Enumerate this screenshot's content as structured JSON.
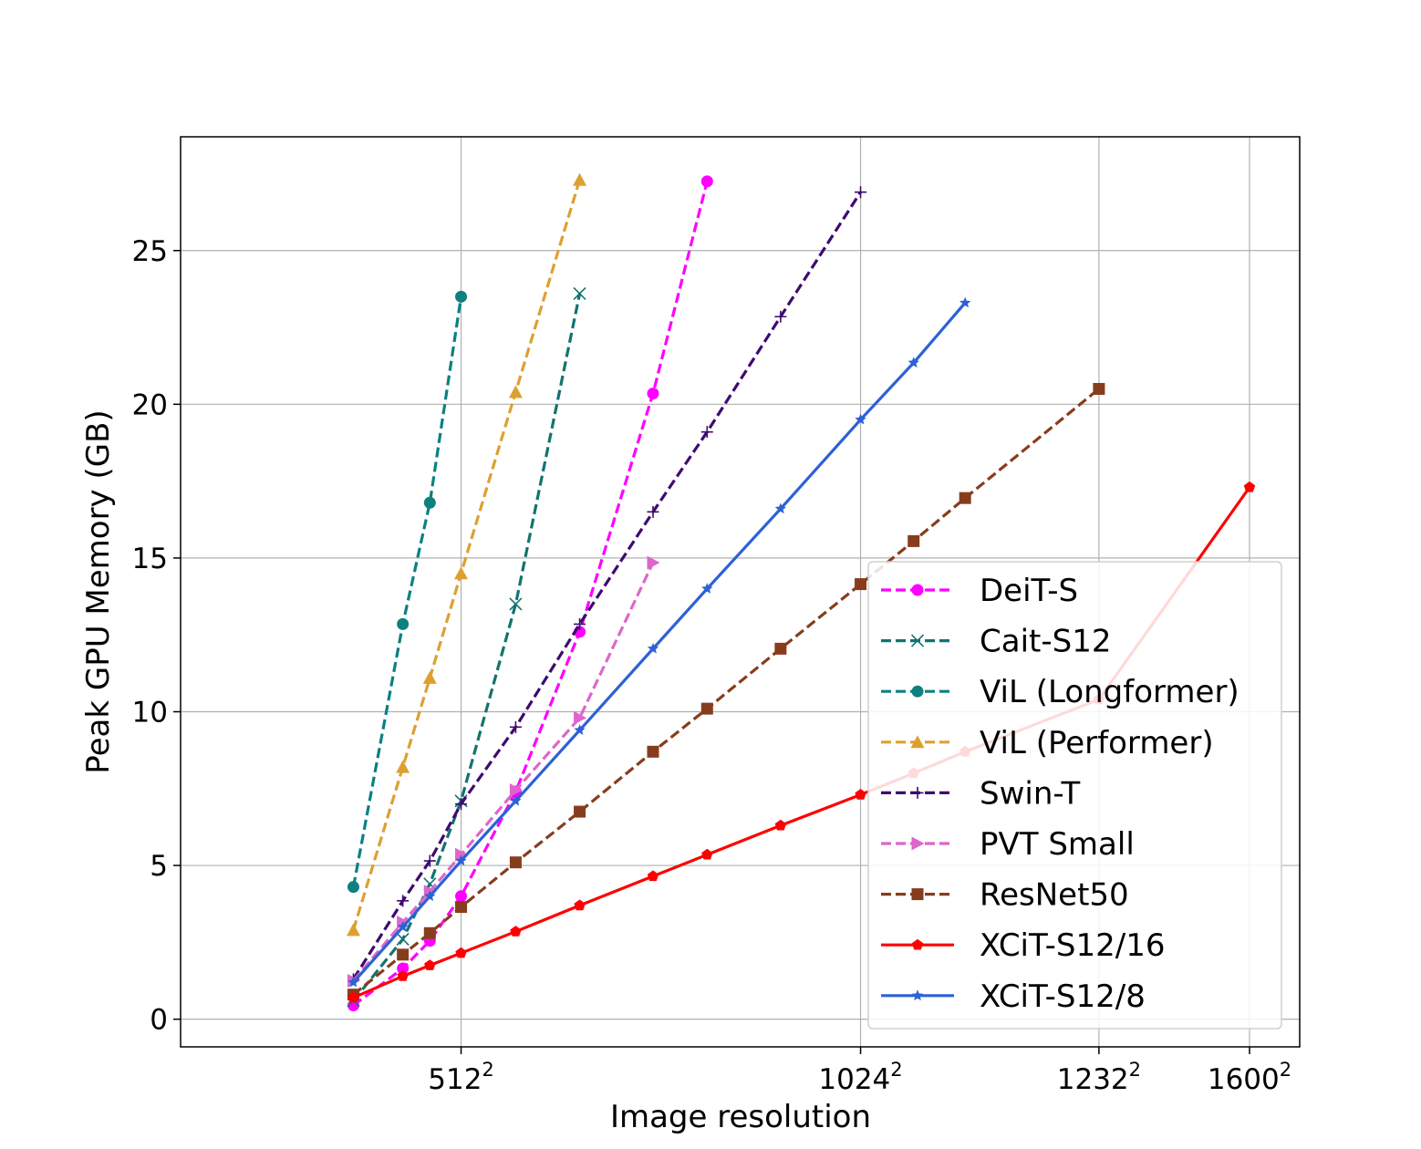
{
  "chart_data": {
    "type": "line",
    "title": "",
    "xlabel": "Image resolution",
    "ylabel": "Peak GPU Memory (GB)",
    "xlim": [
      -290000,
      1913000
    ],
    "ylim": [
      -0.9,
      28.7
    ],
    "x_scale": "resolution squared (pixels)",
    "x_ticks": [
      {
        "value": 262144,
        "base": "512",
        "exp": "2"
      },
      {
        "value": 1048576,
        "base": "1024",
        "exp": "2"
      },
      {
        "value": 1517824,
        "base": "1232",
        "exp": "2"
      },
      {
        "value": 2560000,
        "base": "1600",
        "exp": "2"
      }
    ],
    "y_ticks": [
      0,
      5,
      10,
      15,
      20,
      25
    ],
    "grid": true,
    "legend_position": "lower-right",
    "series": [
      {
        "name": "DeiT-S",
        "color": "#ff00ff",
        "dash": "dashed",
        "marker": "circle",
        "x": [
          50176,
          147456,
          200704,
          262144,
          369664,
          495616,
          640000,
          746496
        ],
        "y": [
          0.45,
          1.65,
          2.55,
          4.0,
          7.4,
          12.6,
          20.35,
          27.25
        ]
      },
      {
        "name": "Cait-S12",
        "color": "#137370",
        "dash": "dashed",
        "marker": "x",
        "x": [
          50176,
          147456,
          200704,
          262144,
          369664,
          495616
        ],
        "y": [
          0.6,
          2.6,
          4.4,
          7.1,
          13.5,
          23.6
        ]
      },
      {
        "name": "ViL (Longformer)",
        "color": "#0d8080",
        "dash": "dashed",
        "marker": "circle",
        "x": [
          50176,
          147456,
          200704,
          262144
        ],
        "y": [
          4.3,
          12.85,
          16.8,
          23.5
        ]
      },
      {
        "name": "ViL (Performer)",
        "color": "#dda030",
        "dash": "dashed",
        "marker": "triangle",
        "x": [
          50176,
          147456,
          200704,
          262144,
          369664,
          495616
        ],
        "y": [
          2.9,
          8.2,
          11.1,
          14.5,
          20.4,
          27.3
        ]
      },
      {
        "name": "Swin-T",
        "color": "#3f0a6f",
        "dash": "dashed",
        "marker": "plus",
        "x": [
          50176,
          147456,
          200704,
          262144,
          369664,
          495616,
          640000,
          746496,
          891136,
          1048576
        ],
        "y": [
          1.3,
          3.85,
          5.15,
          7.0,
          9.5,
          12.85,
          16.5,
          19.1,
          22.85,
          26.9
        ]
      },
      {
        "name": "PVT Small",
        "color": "#dd66cc",
        "dash": "dashed",
        "marker": "triangle-right",
        "x": [
          50176,
          147456,
          200704,
          262144,
          369664,
          495616,
          640000
        ],
        "y": [
          1.25,
          3.15,
          4.15,
          5.35,
          7.45,
          9.8,
          14.85
        ]
      },
      {
        "name": "ResNet50",
        "color": "#873d1c",
        "dash": "dashed",
        "marker": "square",
        "x": [
          50176,
          147456,
          200704,
          262144,
          369664,
          495616,
          640000,
          746496,
          891136,
          1048576,
          1153024,
          1254400,
          1517824
        ],
        "y": [
          0.8,
          2.1,
          2.8,
          3.65,
          5.1,
          6.75,
          8.7,
          10.1,
          12.05,
          14.15,
          15.55,
          16.95,
          20.5
        ]
      },
      {
        "name": "XCiT-S12/16",
        "color": "#ff0000",
        "dash": "solid",
        "marker": "pentagon",
        "x": [
          50176,
          147456,
          200704,
          262144,
          369664,
          495616,
          640000,
          746496,
          891136,
          1048576,
          1153024,
          1254400,
          1517824,
          2560000
        ],
        "y": [
          0.7,
          1.4,
          1.75,
          2.15,
          2.85,
          3.7,
          4.65,
          5.35,
          6.3,
          7.3,
          8.0,
          8.7,
          10.4,
          17.3
        ]
      },
      {
        "name": "XCiT-S12/8",
        "color": "#2d61d6",
        "dash": "solid",
        "marker": "star",
        "x": [
          50176,
          147456,
          200704,
          262144,
          369664,
          495616,
          640000,
          746496,
          891136,
          1048576,
          1153024,
          1254400
        ],
        "y": [
          1.2,
          3.0,
          4.0,
          5.15,
          7.1,
          9.4,
          12.05,
          14.0,
          16.6,
          19.5,
          21.35,
          23.3
        ]
      }
    ]
  }
}
